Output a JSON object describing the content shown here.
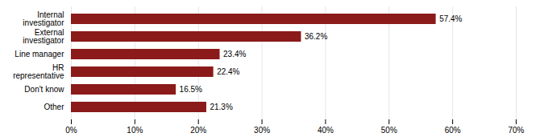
{
  "chart_data": {
    "type": "bar",
    "orientation": "horizontal",
    "categories": [
      "Internal\ninvestigator",
      "External\ninvestigator",
      "Line manager",
      "HR\nrepresentative",
      "Don't know",
      "Other"
    ],
    "values": [
      57.4,
      36.2,
      23.4,
      22.4,
      16.5,
      21.3
    ],
    "value_labels": [
      "57.4%",
      "36.2%",
      "23.4%",
      "22.4%",
      "16.5%",
      "21.3%"
    ],
    "data_labels": true,
    "color": "#8B1A1A",
    "xlim": [
      0,
      70
    ],
    "xticks": [
      {
        "value": 0,
        "label": "0%"
      },
      {
        "value": 10,
        "label": "10%"
      },
      {
        "value": 20,
        "label": "20%"
      },
      {
        "value": 30,
        "label": "30%"
      },
      {
        "value": 40,
        "label": "40%"
      },
      {
        "value": 50,
        "label": "50%"
      },
      {
        "value": 60,
        "label": "60%"
      },
      {
        "value": 70,
        "label": "70%"
      }
    ],
    "grid": true
  }
}
